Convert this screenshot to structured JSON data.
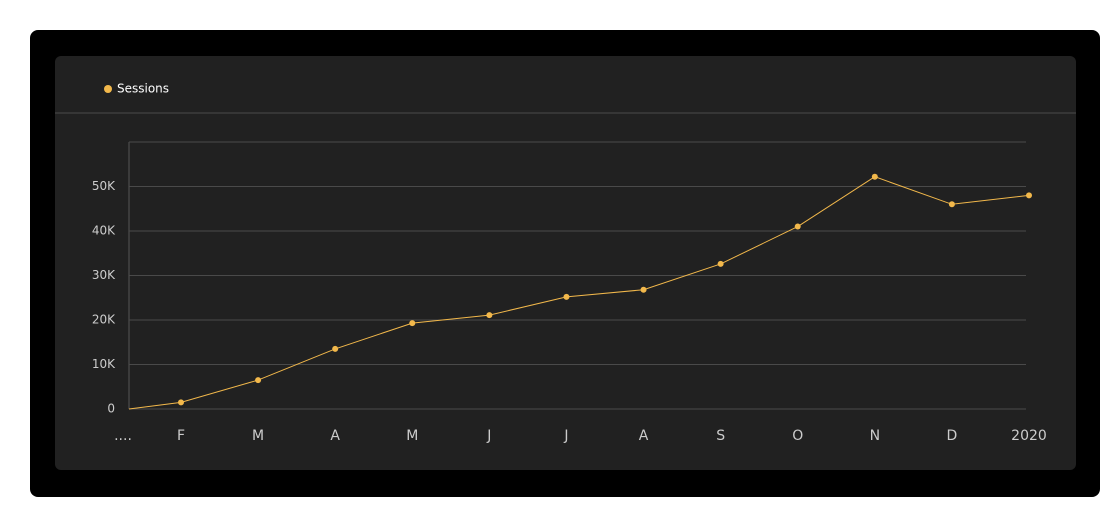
{
  "chart_data": {
    "type": "line",
    "categories": [
      "....",
      "F",
      "M",
      "A",
      "M",
      "J",
      "J",
      "A",
      "S",
      "O",
      "N",
      "D",
      "2020"
    ],
    "series": [
      {
        "name": "Sessions",
        "color": "#f2b84b",
        "values": [
          0,
          1500,
          6500,
          13500,
          19300,
          21100,
          25200,
          26800,
          32600,
          41000,
          52200,
          46000,
          48000
        ]
      }
    ],
    "ylim": [
      0,
      60000
    ],
    "yticks": [
      0,
      {
        "value": 10000,
        "label": "10K"
      },
      {
        "value": 20000,
        "label": "20K"
      },
      {
        "value": 30000,
        "label": "30K"
      },
      {
        "value": 40000,
        "label": "40K"
      },
      {
        "value": 50000,
        "label": "50K"
      }
    ],
    "grid": true
  }
}
